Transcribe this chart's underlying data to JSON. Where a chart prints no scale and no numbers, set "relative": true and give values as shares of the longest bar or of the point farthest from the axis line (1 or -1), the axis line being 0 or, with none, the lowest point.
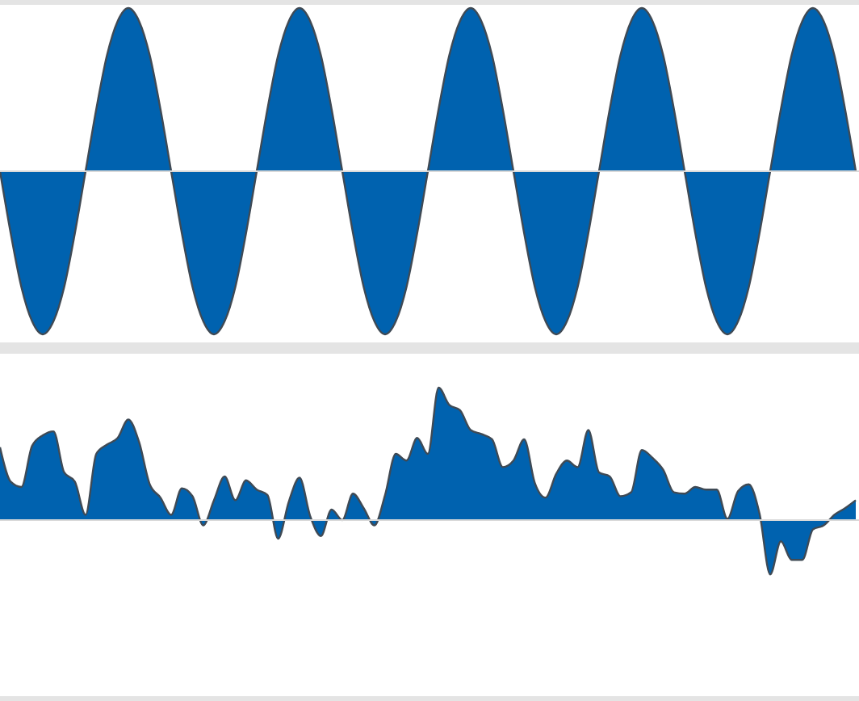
{
  "chart_data": [
    {
      "type": "area",
      "relative": true,
      "categories": [
        null,
        null,
        null,
        null,
        null,
        null,
        null,
        null,
        null,
        null,
        null,
        null,
        null,
        null,
        null,
        null,
        null,
        null,
        null,
        null,
        null,
        null,
        null,
        null,
        null,
        null,
        null,
        null,
        null,
        null,
        null,
        null,
        null,
        null,
        null,
        null,
        null,
        null,
        null,
        null,
        null,
        null,
        null,
        null,
        null,
        null,
        null,
        null,
        null,
        null,
        null,
        null,
        null,
        null,
        null,
        null,
        null,
        null,
        null,
        null,
        null,
        null,
        null,
        null,
        null,
        null,
        null,
        null,
        null,
        null,
        null,
        null,
        null,
        null,
        null,
        null,
        null,
        null,
        null,
        null,
        null
      ],
      "series": [
        {
          "color": "#0062af",
          "values": [
            0,
            -0.38,
            -0.71,
            -0.92,
            -1,
            -0.92,
            -0.71,
            -0.38,
            0,
            0.38,
            0.71,
            0.92,
            1,
            0.92,
            0.71,
            0.38,
            0,
            -0.38,
            -0.71,
            -0.92,
            -1,
            -0.92,
            -0.71,
            -0.38,
            0,
            0.38,
            0.71,
            0.92,
            1,
            0.92,
            0.71,
            0.38,
            0,
            -0.38,
            -0.71,
            -0.92,
            -1,
            -0.92,
            -0.71,
            -0.38,
            0,
            0.38,
            0.71,
            0.92,
            1,
            0.92,
            0.71,
            0.38,
            0,
            -0.38,
            -0.71,
            -0.92,
            -1,
            -0.92,
            -0.71,
            -0.38,
            0,
            0.38,
            0.71,
            0.92,
            1,
            0.92,
            0.71,
            0.38,
            0,
            -0.38,
            -0.71,
            -0.92,
            -1,
            -0.92,
            -0.71,
            -0.38,
            0,
            0.38,
            0.71,
            0.92,
            1,
            0.92,
            0.71,
            0.38,
            0
          ]
        }
      ]
    },
    {
      "type": "area",
      "relative": true,
      "categories": [
        null,
        null,
        null,
        null,
        null,
        null,
        null,
        null,
        null,
        null,
        null,
        null,
        null,
        null,
        null,
        null,
        null,
        null,
        null,
        null,
        null,
        null,
        null,
        null,
        null,
        null,
        null,
        null,
        null,
        null,
        null,
        null,
        null,
        null,
        null,
        null,
        null,
        null,
        null,
        null,
        null,
        null,
        null,
        null,
        null,
        null,
        null,
        null,
        null,
        null,
        null,
        null,
        null,
        null,
        null,
        null,
        null,
        null,
        null,
        null,
        null,
        null,
        null,
        null,
        null,
        null,
        null,
        null,
        null,
        null,
        null,
        null,
        null,
        null,
        null,
        null,
        null,
        null,
        null,
        null,
        null
      ],
      "series": [
        {
          "color": "#0062af",
          "values": [
            0.55,
            0.29,
            0.25,
            0.56,
            0.64,
            0.67,
            0.36,
            0.29,
            0.04,
            0.5,
            0.57,
            0.62,
            0.76,
            0.59,
            0.27,
            0.17,
            0.04,
            0.24,
            0.18,
            -0.04,
            0.15,
            0.33,
            0.15,
            0.3,
            0.23,
            0.19,
            -0.14,
            0.14,
            0.32,
            0.03,
            -0.12,
            0.08,
            0,
            0.2,
            0.09,
            -0.04,
            0.19,
            0.5,
            0.45,
            0.62,
            0.5,
            1.0,
            0.87,
            0.83,
            0.68,
            0.65,
            0.61,
            0.4,
            0.45,
            0.61,
            0.28,
            0.17,
            0.35,
            0.45,
            0.4,
            0.68,
            0.36,
            0.33,
            0.18,
            0.21,
            0.53,
            0.47,
            0.38,
            0.21,
            0.2,
            0.25,
            0.23,
            0.23,
            0.01,
            0.22,
            0.27,
            0.05,
            -0.41,
            -0.16,
            -0.3,
            -0.3,
            -0.07,
            -0.04,
            0.04,
            0.09,
            0.15
          ]
        }
      ]
    }
  ]
}
